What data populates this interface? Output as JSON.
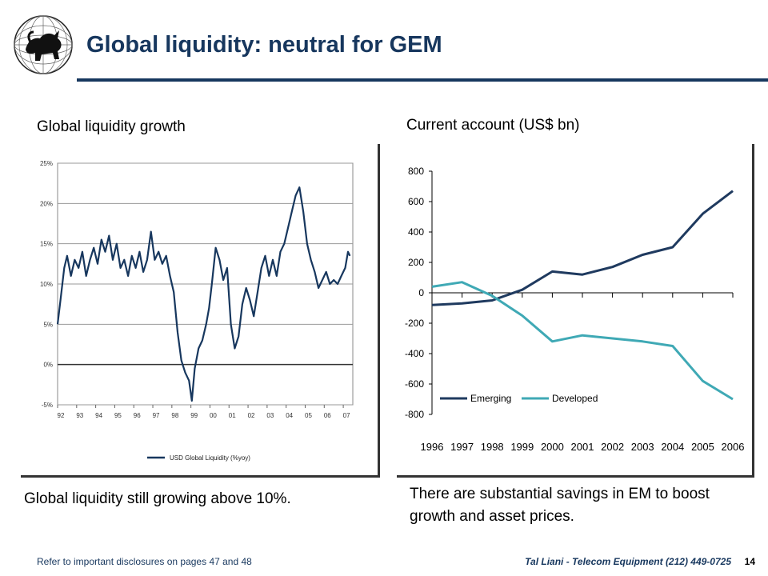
{
  "slide": {
    "title": "Global liquidity: neutral for GEM",
    "footer_left": "Refer to important disclosures on pages 47 and 48",
    "footer_right": "Tal Liani - Telecom Equipment (212) 449-0725",
    "page_number": "14",
    "colors": {
      "title": "#17375e",
      "rule": "#17375e"
    }
  },
  "left": {
    "heading": "Global liquidity growth",
    "caption": "Global liquidity still growing above 10%."
  },
  "right": {
    "heading": "Current account (US$ bn)",
    "caption": "There are substantial savings in EM to boost growth and asset prices."
  },
  "chart_data": [
    {
      "type": "line",
      "title": "",
      "x": [
        "92",
        "93",
        "94",
        "95",
        "96",
        "97",
        "98",
        "99",
        "00",
        "01",
        "02",
        "03",
        "04",
        "05",
        "06",
        "07"
      ],
      "yticks": [
        "25%",
        "20%",
        "15%",
        "10%",
        "5%",
        "0%",
        "-5%"
      ],
      "ylim": [
        -5,
        25
      ],
      "grid": true,
      "legend": "bottom",
      "series": [
        {
          "name": "USD Global Liquidity (%yoy)",
          "color": "#17375e",
          "points": [
            [
              1992.0,
              5.0
            ],
            [
              1992.15,
              8.0
            ],
            [
              1992.35,
              12.0
            ],
            [
              1992.5,
              13.5
            ],
            [
              1992.7,
              11.0
            ],
            [
              1992.9,
              13.0
            ],
            [
              1993.1,
              12.0
            ],
            [
              1993.3,
              14.0
            ],
            [
              1993.5,
              11.0
            ],
            [
              1993.7,
              13.0
            ],
            [
              1993.9,
              14.5
            ],
            [
              1994.1,
              12.5
            ],
            [
              1994.3,
              15.5
            ],
            [
              1994.5,
              14.0
            ],
            [
              1994.7,
              16.0
            ],
            [
              1994.9,
              13.0
            ],
            [
              1995.1,
              15.0
            ],
            [
              1995.3,
              12.0
            ],
            [
              1995.5,
              13.0
            ],
            [
              1995.7,
              11.0
            ],
            [
              1995.9,
              13.5
            ],
            [
              1996.1,
              12.0
            ],
            [
              1996.3,
              14.0
            ],
            [
              1996.5,
              11.5
            ],
            [
              1996.7,
              13.0
            ],
            [
              1996.9,
              16.5
            ],
            [
              1997.1,
              13.0
            ],
            [
              1997.3,
              14.0
            ],
            [
              1997.5,
              12.5
            ],
            [
              1997.7,
              13.5
            ],
            [
              1997.9,
              11.0
            ],
            [
              1998.1,
              9.0
            ],
            [
              1998.3,
              4.0
            ],
            [
              1998.5,
              0.5
            ],
            [
              1998.7,
              -1.0
            ],
            [
              1998.9,
              -2.0
            ],
            [
              1999.05,
              -4.5
            ],
            [
              1999.2,
              -0.5
            ],
            [
              1999.4,
              2.0
            ],
            [
              1999.6,
              3.0
            ],
            [
              1999.8,
              5.0
            ],
            [
              1999.95,
              7.0
            ],
            [
              2000.1,
              10.0
            ],
            [
              2000.3,
              14.5
            ],
            [
              2000.5,
              13.0
            ],
            [
              2000.7,
              10.5
            ],
            [
              2000.9,
              12.0
            ],
            [
              2001.1,
              5.0
            ],
            [
              2001.3,
              2.0
            ],
            [
              2001.5,
              3.5
            ],
            [
              2001.7,
              7.5
            ],
            [
              2001.9,
              9.5
            ],
            [
              2002.1,
              8.0
            ],
            [
              2002.3,
              6.0
            ],
            [
              2002.5,
              9.0
            ],
            [
              2002.7,
              12.0
            ],
            [
              2002.9,
              13.5
            ],
            [
              2003.1,
              11.0
            ],
            [
              2003.3,
              13.0
            ],
            [
              2003.5,
              11.0
            ],
            [
              2003.7,
              14.0
            ],
            [
              2003.9,
              15.0
            ],
            [
              2004.1,
              17.0
            ],
            [
              2004.3,
              19.0
            ],
            [
              2004.5,
              21.0
            ],
            [
              2004.7,
              22.0
            ],
            [
              2004.9,
              19.0
            ],
            [
              2005.1,
              15.0
            ],
            [
              2005.3,
              13.0
            ],
            [
              2005.5,
              11.5
            ],
            [
              2005.7,
              9.5
            ],
            [
              2005.9,
              10.5
            ],
            [
              2006.1,
              11.5
            ],
            [
              2006.3,
              10.0
            ],
            [
              2006.5,
              10.5
            ],
            [
              2006.7,
              10.0
            ],
            [
              2006.9,
              11.0
            ],
            [
              2007.1,
              12.0
            ],
            [
              2007.25,
              14.0
            ],
            [
              2007.35,
              13.5
            ]
          ]
        }
      ]
    },
    {
      "type": "line",
      "title": "",
      "categories": [
        "1996",
        "1997",
        "1998",
        "1999",
        "2000",
        "2001",
        "2002",
        "2003",
        "2004",
        "2005",
        "2006"
      ],
      "yticks": [
        800,
        600,
        400,
        200,
        0,
        -200,
        -400,
        -600,
        -800
      ],
      "ylim": [
        -800,
        800
      ],
      "grid": false,
      "legend": "bottom-left",
      "series": [
        {
          "name": "Emerging",
          "color": "#1f3a5f",
          "values": [
            -80,
            -70,
            -50,
            20,
            140,
            120,
            170,
            250,
            300,
            520,
            670
          ]
        },
        {
          "name": "Developed",
          "color": "#3fa9b5",
          "values": [
            40,
            70,
            -20,
            -150,
            -320,
            -280,
            -300,
            -320,
            -350,
            -580,
            -700
          ]
        }
      ]
    }
  ]
}
